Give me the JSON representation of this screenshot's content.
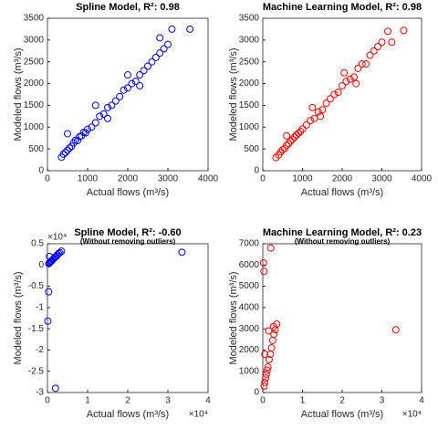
{
  "chart_data": [
    {
      "type": "scatter",
      "title": "Spline Model, R²: 0.98",
      "xlabel": "Actual flows (m³/s)",
      "ylabel": "Modeled flows (m³/s)",
      "color": "#0000ff",
      "xlim": [
        0,
        4000
      ],
      "xticks": [
        0,
        1000,
        2000,
        3000,
        4000
      ],
      "ylim": [
        0,
        3500
      ],
      "yticks": [
        0,
        500,
        1000,
        1500,
        2000,
        2500,
        3000,
        3500
      ],
      "x": [
        350,
        400,
        450,
        500,
        550,
        600,
        650,
        700,
        750,
        800,
        850,
        900,
        950,
        1000,
        1100,
        1200,
        1300,
        1400,
        1500,
        1600,
        1700,
        1800,
        1900,
        2000,
        2100,
        2200,
        2300,
        2400,
        2500,
        2600,
        2700,
        2800,
        2900,
        3000,
        3100,
        3550,
        1200,
        1500,
        500,
        2000,
        2300,
        2800
      ],
      "values": [
        310,
        380,
        420,
        470,
        520,
        560,
        640,
        700,
        690,
        780,
        800,
        880,
        870,
        950,
        1000,
        1100,
        1250,
        1300,
        1450,
        1500,
        1600,
        1700,
        1850,
        1900,
        2000,
        2050,
        2200,
        2300,
        2400,
        2500,
        2600,
        2700,
        2800,
        2900,
        3250,
        3250,
        1500,
        1200,
        850,
        2200,
        1950,
        3050
      ]
    },
    {
      "type": "scatter",
      "title": "Machine Learning Model, R²: 0.98",
      "xlabel": "Actual flows (m³/s)",
      "ylabel": "Modeled flows (m³/s)",
      "color": "#ff0000",
      "xlim": [
        0,
        4000
      ],
      "xticks": [
        0,
        1000,
        2000,
        3000,
        4000
      ],
      "ylim": [
        0,
        3500
      ],
      "yticks": [
        0,
        500,
        1000,
        1500,
        2000,
        2500,
        3000,
        3500
      ],
      "x": [
        330,
        400,
        450,
        500,
        550,
        600,
        650,
        700,
        750,
        800,
        850,
        900,
        950,
        1000,
        1100,
        1200,
        1300,
        1400,
        1500,
        1600,
        1700,
        1800,
        1900,
        2000,
        2100,
        2200,
        2300,
        2400,
        2500,
        2600,
        2700,
        2800,
        2900,
        3000,
        3150,
        3550,
        1250,
        1450,
        600,
        2050,
        2350,
        3250
      ],
      "values": [
        300,
        360,
        430,
        480,
        510,
        580,
        620,
        680,
        720,
        770,
        820,
        860,
        900,
        960,
        1050,
        1150,
        1200,
        1350,
        1400,
        1550,
        1650,
        1750,
        1800,
        1950,
        2050,
        2100,
        2150,
        2350,
        2450,
        2450,
        2650,
        2750,
        2850,
        2950,
        3200,
        3220,
        1450,
        1250,
        800,
        2250,
        2000,
        2950
      ]
    },
    {
      "type": "scatter",
      "title": "Spline Model, R²: -0.60",
      "subtitle": "(Without removing outliers)",
      "xlabel": "Actual flows (m³/s)",
      "ylabel": "Modeled flows (m³/s)",
      "color": "#0000ff",
      "x_multiplier": "×10⁴",
      "y_multiplier": "×10⁴",
      "xlim": [
        0,
        40000
      ],
      "xticks": [
        0,
        {
          "value": 10000,
          "label": "1"
        },
        {
          "value": 20000,
          "label": "2"
        },
        {
          "value": 30000,
          "label": "3"
        },
        {
          "value": 40000,
          "label": "4"
        }
      ],
      "ylim": [
        -30000,
        5000
      ],
      "yticks": [
        {
          "value": -30000,
          "label": "-3"
        },
        {
          "value": -25000,
          "label": "-2.5"
        },
        {
          "value": -20000,
          "label": "-2"
        },
        {
          "value": -15000,
          "label": "-1.5"
        },
        {
          "value": -10000,
          "label": "-1"
        },
        {
          "value": -5000,
          "label": "-0.5"
        },
        0,
        {
          "value": 5000,
          "label": "0.5"
        }
      ],
      "x": [
        350,
        500,
        700,
        900,
        1100,
        1300,
        1600,
        1900,
        2200,
        2500,
        2800,
        3100,
        3500,
        33500,
        300,
        100,
        2000,
        500
      ],
      "values": [
        310,
        470,
        700,
        880,
        1000,
        1250,
        1500,
        1850,
        2050,
        2400,
        2700,
        2900,
        3250,
        3000,
        -6300,
        -13200,
        -29000,
        2000
      ]
    },
    {
      "type": "scatter",
      "title": "Machine Learning Model, R²: 0.23",
      "subtitle": "(Without removing outliers)",
      "xlabel": "Actual flows (m³/s)",
      "ylabel": "Modeled flows (m³/s)",
      "color": "#ff0000",
      "x_multiplier": "×10⁴",
      "xlim": [
        0,
        40000
      ],
      "xticks": [
        0,
        {
          "value": 10000,
          "label": "1"
        },
        {
          "value": 20000,
          "label": "2"
        },
        {
          "value": 30000,
          "label": "3"
        },
        {
          "value": 40000,
          "label": "4"
        }
      ],
      "ylim": [
        0,
        7000
      ],
      "yticks": [
        0,
        1000,
        2000,
        3000,
        4000,
        5000,
        6000,
        7000
      ],
      "x": [
        330,
        500,
        700,
        900,
        1100,
        1300,
        1600,
        1900,
        2200,
        2500,
        2800,
        3100,
        3500,
        33500,
        200,
        300,
        2000,
        500,
        1500,
        2700
      ],
      "values": [
        300,
        480,
        680,
        860,
        1050,
        1200,
        1550,
        1800,
        2100,
        2450,
        2750,
        2950,
        3220,
        2950,
        6100,
        5700,
        6800,
        1800,
        2900,
        3100
      ]
    }
  ]
}
